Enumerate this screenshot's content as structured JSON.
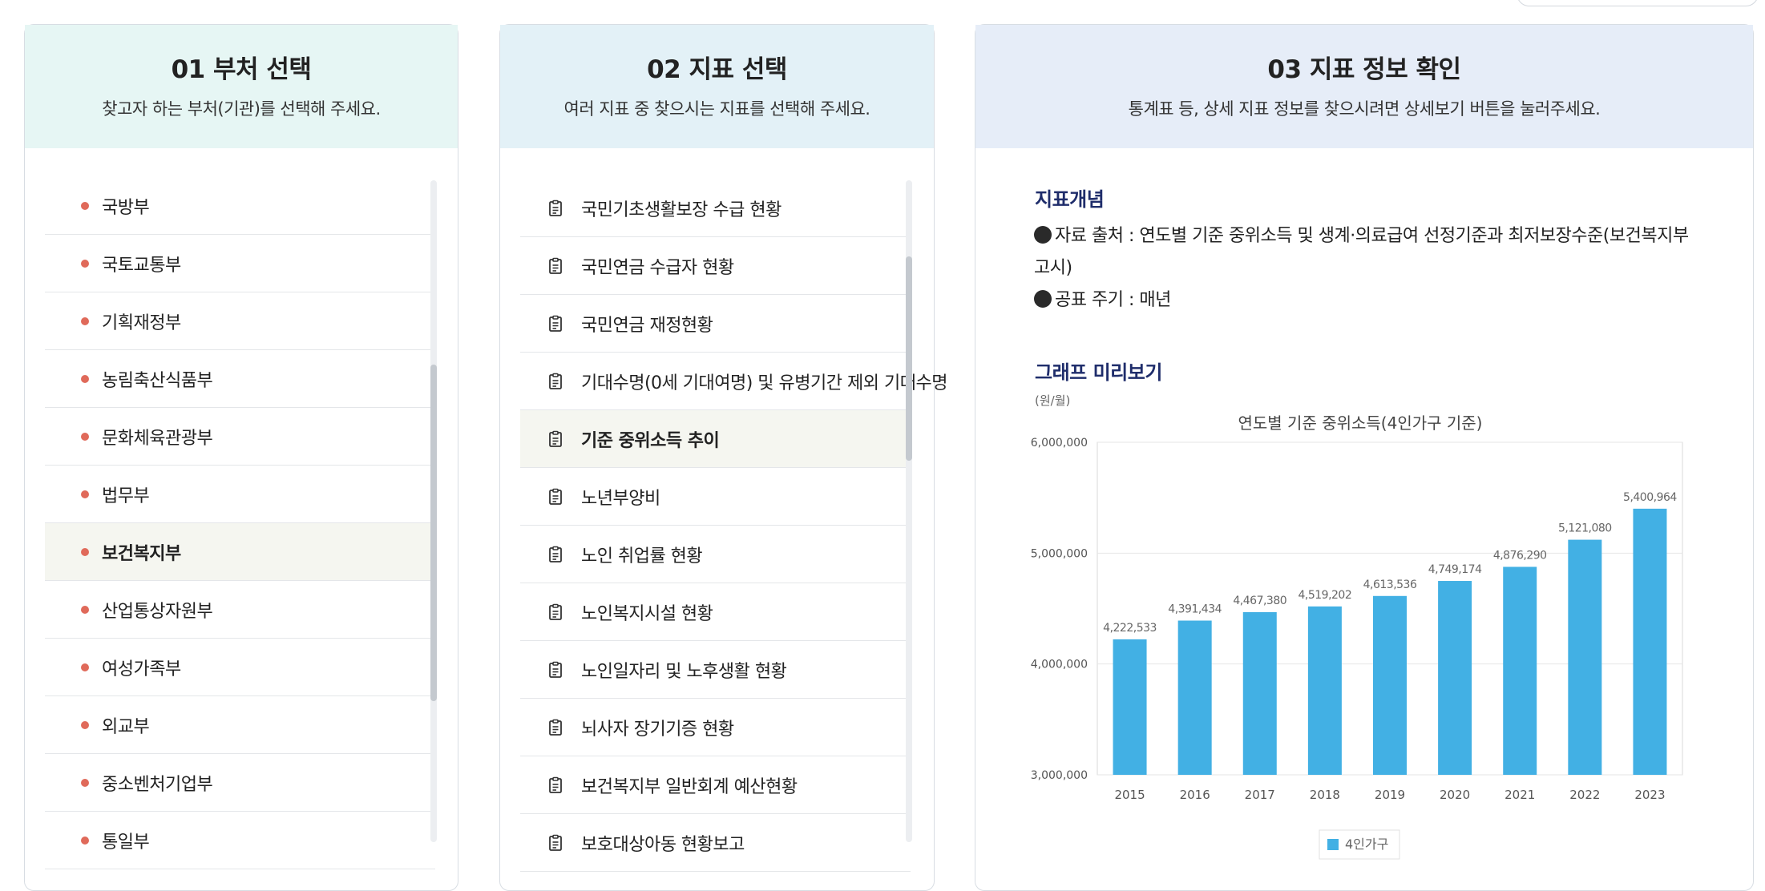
{
  "panels": [
    {
      "title": "01 부처 선택",
      "subtitle": "찾고자 하는 부처(기관)를 선택해 주세요."
    },
    {
      "title": "02 지표 선택",
      "subtitle": "여러 지표 중 찾으시는 지표를 선택해 주세요."
    },
    {
      "title": "03 지표 정보 확인",
      "subtitle": "통계표 등, 상세 지표 정보를 찾으시려면 상세보기 버튼을 눌러주세요."
    }
  ],
  "ministries": [
    "국방부",
    "국토교통부",
    "기획재정부",
    "농림축산식품부",
    "문화체육관광부",
    "법무부",
    "보건복지부",
    "산업통상자원부",
    "여성가족부",
    "외교부",
    "중소벤처기업부",
    "통일부"
  ],
  "ministries_selected": "보건복지부",
  "indicators": [
    "국민기초생활보장 수급 현황",
    "국민연금 수급자 현황",
    "국민연금 재정현황",
    "기대수명(0세 기대여명) 및 유병기간 제외 기대수명",
    "기준 중위소득 추이",
    "노년부양비",
    "노인 취업률 현황",
    "노인복지시설 현황",
    "노인일자리 및 노후생활 현황",
    "뇌사자 장기기증 현황",
    "보건복지부 일반회계 예산현황",
    "보호대상아동 현황보고"
  ],
  "indicators_selected": "기준 중위소득 추이",
  "info": {
    "concept_title": "지표개념",
    "source": "자료 출처 : 연도별 기준 중위소득 및 생계·의료급여 선정기준과 최저보장수준(보건복지부 고시)",
    "cycle": "공표 주기 : 매년",
    "preview_title": "그래프 미리보기"
  },
  "chart_data": {
    "type": "bar",
    "title": "연도별 기준 중위소득(4인가구 기준)",
    "unit": "(원/월)",
    "categories": [
      "2015",
      "2016",
      "2017",
      "2018",
      "2019",
      "2020",
      "2021",
      "2022",
      "2023"
    ],
    "series": [
      {
        "name": "4인가구",
        "values": [
          4222533,
          4391434,
          4467380,
          4519202,
          4613536,
          4749174,
          4876290,
          5121080,
          5400964
        ]
      }
    ],
    "data_labels": [
      "4,222,533",
      "4,391,434",
      "4,467,380",
      "4,519,202",
      "4,613,536",
      "4,749,174",
      "4,876,290",
      "5,121,080",
      "5,400,964"
    ],
    "yticks": [
      "3,000,000",
      "4,000,000",
      "5,000,000",
      "6,000,000"
    ],
    "ylim": [
      3000000,
      6000000
    ],
    "grid": true,
    "legend": "bottom",
    "color": "#42b0e4"
  }
}
